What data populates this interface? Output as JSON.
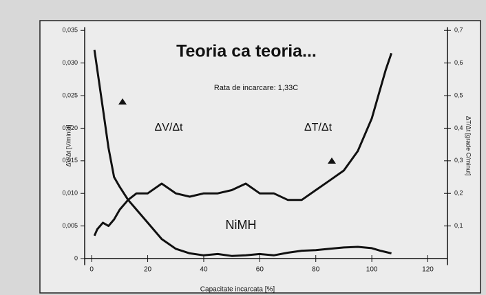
{
  "chart_data": {
    "type": "line",
    "title": "Teoria ca teoria...",
    "subtitle": "Rata de incarcare: 1,33C",
    "annotation": "NiMH",
    "x_label": "Capacitate incarcata [%]",
    "y_label": "ΔV/Δt [V/minut]",
    "y2_label": "ΔT/Δt [grade C/minut]",
    "x": [
      1,
      2,
      4,
      6,
      8,
      10,
      13,
      16,
      20,
      25,
      30,
      35,
      40,
      45,
      50,
      55,
      60,
      65,
      70,
      75,
      80,
      85,
      90,
      95,
      100,
      103,
      105,
      107
    ],
    "series": [
      {
        "name": "ΔV/Δt",
        "color": "#111111",
        "values": [
          0.032,
          0.029,
          0.023,
          0.017,
          0.0125,
          0.011,
          0.009,
          0.0075,
          0.0055,
          0.003,
          0.0015,
          0.0008,
          0.0005,
          0.0007,
          0.0004,
          0.0005,
          0.0007,
          0.0005,
          0.0009,
          0.0012,
          0.0013,
          0.0015,
          0.0017,
          0.0018,
          0.0016,
          0.0012,
          0.001,
          0.0008
        ]
      },
      {
        "name": "ΔT/Δt",
        "color": "#111111",
        "axis": "y2",
        "values": [
          0.07,
          0.09,
          0.11,
          0.1,
          0.12,
          0.15,
          0.18,
          0.2,
          0.2,
          0.23,
          0.2,
          0.19,
          0.2,
          0.2,
          0.21,
          0.23,
          0.2,
          0.2,
          0.18,
          0.18,
          0.21,
          0.24,
          0.27,
          0.33,
          0.43,
          0.52,
          0.58,
          0.63
        ]
      }
    ],
    "xlim": [
      -2.5,
      127
    ],
    "xticks": [
      0,
      20,
      40,
      60,
      80,
      100,
      120
    ],
    "ylim": [
      -0.001,
      0.0355
    ],
    "yticks": [
      0,
      {
        "value": 0.005,
        "label": "0,005"
      },
      {
        "value": 0.01,
        "label": "0,010"
      },
      {
        "value": 0.015,
        "label": "0,015"
      },
      {
        "value": 0.02,
        "label": "0,020"
      },
      {
        "value": 0.025,
        "label": "0,025"
      },
      {
        "value": 0.03,
        "label": "0,030"
      },
      {
        "value": 0.035,
        "label": "0,035"
      }
    ],
    "y2lim": [
      -0.02,
      0.71
    ],
    "y2ticks": [
      {
        "value": 0.1,
        "label": "0,1"
      },
      {
        "value": 0.2,
        "label": "0,2"
      },
      {
        "value": 0.3,
        "label": "0,3"
      },
      {
        "value": 0.4,
        "label": "0,4"
      },
      {
        "value": 0.5,
        "label": "0,5"
      },
      {
        "value": 0.6,
        "label": "0,6"
      },
      {
        "value": 0.7,
        "label": "0,7"
      }
    ],
    "grid": false
  }
}
